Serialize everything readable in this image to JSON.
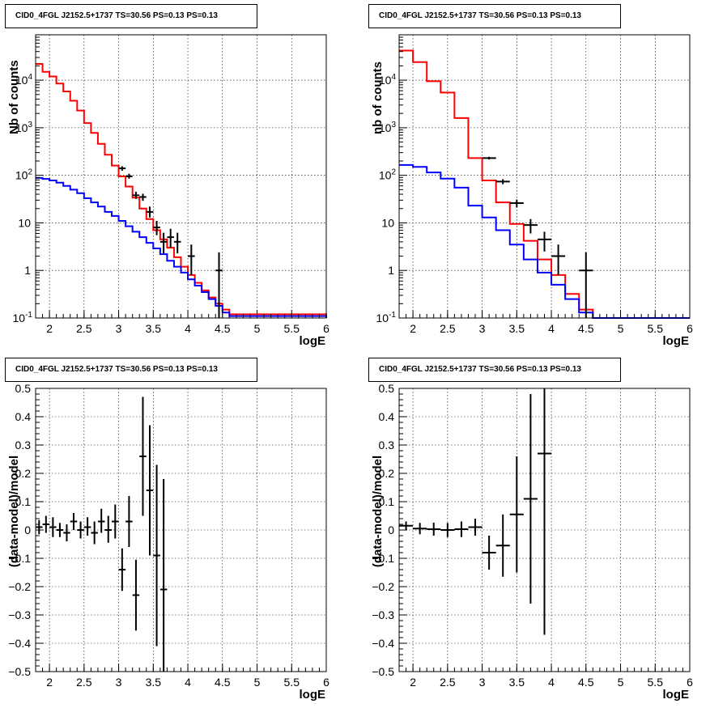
{
  "pads": [
    {
      "title": "CID0_4FGL J2152.5+1737 TS=30.56 PS=0.13 PS=0.13",
      "chart_data": {
        "type": "line",
        "xlabel": "logE",
        "ylabel": "Nb of counts",
        "yscale": "log",
        "xlim": [
          1.8,
          6.0
        ],
        "ylim": [
          0.1,
          90000
        ],
        "grid": true,
        "x_ticks": [
          "2",
          "2.5",
          "3",
          "3.5",
          "4",
          "4.5",
          "5",
          "5.5",
          "6"
        ],
        "y_ticks": [
          "10^-1",
          "1",
          "10",
          "10^2",
          "10^3",
          "10^4"
        ],
        "bin_edges": [
          1.8,
          1.9,
          2.0,
          2.1,
          2.2,
          2.3,
          2.4,
          2.5,
          2.6,
          2.7,
          2.8,
          2.9,
          3.0,
          3.1,
          3.2,
          3.3,
          3.4,
          3.5,
          3.6,
          3.7,
          3.8,
          3.9,
          4.0,
          4.1,
          4.2,
          4.3,
          4.4,
          4.5,
          4.6,
          6.0
        ],
        "series": [
          {
            "color": "#ff0000",
            "values": [
              22000,
              15000,
              12000,
              8500,
              5800,
              3700,
              2300,
              1250,
              780,
              460,
              270,
              160,
              95,
              58,
              34,
              20,
              12,
              7,
              4.5,
              3.0,
              1.9,
              1.2,
              0.8,
              0.55,
              0.38,
              0.27,
              0.2,
              0.15,
              0.12,
              0.1
            ]
          },
          {
            "color": "#0000ff",
            "values": [
              88,
              84,
              78,
              70,
              60,
              50,
              42,
              33,
              27,
              22,
              17,
              14,
              11,
              8.5,
              6.5,
              5,
              3.8,
              2.9,
              2.2,
              1.6,
              1.2,
              0.9,
              0.65,
              0.48,
              0.35,
              0.25,
              0.18,
              0.13,
              0.11,
              0.1
            ]
          }
        ],
        "points": [
          {
            "x": 3.05,
            "y": 140,
            "ylo": 125,
            "yhi": 155,
            "xerr": 0.05
          },
          {
            "x": 3.15,
            "y": 95,
            "ylo": 85,
            "yhi": 108,
            "xerr": 0.05
          },
          {
            "x": 3.25,
            "y": 38,
            "ylo": 32,
            "yhi": 45,
            "xerr": 0.05
          },
          {
            "x": 3.35,
            "y": 35,
            "ylo": 29,
            "yhi": 41,
            "xerr": 0.05
          },
          {
            "x": 3.45,
            "y": 17,
            "ylo": 13,
            "yhi": 22,
            "xerr": 0.05
          },
          {
            "x": 3.55,
            "y": 8,
            "ylo": 5.5,
            "yhi": 11,
            "xerr": 0.05
          },
          {
            "x": 3.65,
            "y": 4,
            "ylo": 2.3,
            "yhi": 6.2,
            "xerr": 0.05
          },
          {
            "x": 3.75,
            "y": 5,
            "ylo": 3.0,
            "yhi": 7.5,
            "xerr": 0.05
          },
          {
            "x": 3.85,
            "y": 4,
            "ylo": 2.3,
            "yhi": 6.2,
            "xerr": 0.05
          },
          {
            "x": 4.05,
            "y": 2,
            "ylo": 0.8,
            "yhi": 3.5,
            "xerr": 0.05
          },
          {
            "x": 4.45,
            "y": 1,
            "ylo": 0.1,
            "yhi": 2.4,
            "xerr": 0.05
          }
        ]
      }
    },
    {
      "title": "CID0_4FGL J2152.5+1737 TS=30.56 PS=0.13 PS=0.13",
      "chart_data": {
        "type": "line",
        "xlabel": "logE",
        "ylabel": "nb of counts",
        "yscale": "log",
        "xlim": [
          1.8,
          6.0
        ],
        "ylim": [
          0.1,
          90000
        ],
        "grid": true,
        "x_ticks": [
          "2",
          "2.5",
          "3",
          "3.5",
          "4",
          "4.5",
          "5",
          "5.5",
          "6"
        ],
        "y_ticks": [
          "10^-1",
          "1",
          "10",
          "10^2",
          "10^3",
          "10^4"
        ],
        "bin_edges": [
          1.8,
          2.0,
          2.2,
          2.4,
          2.6,
          2.8,
          3.0,
          3.2,
          3.4,
          3.6,
          3.8,
          4.0,
          4.2,
          4.4,
          4.6,
          4.8,
          6.0
        ],
        "series": [
          {
            "color": "#ff0000",
            "values": [
              42000,
              24000,
              9500,
              5500,
              1600,
              230,
              78,
              27,
              9.5,
              4.2,
              1.7,
              0.8,
              0.32,
              0.15,
              0.1,
              0.1
            ]
          },
          {
            "color": "#0000ff",
            "values": [
              165,
              150,
              115,
              85,
              55,
              23,
              13,
              7.0,
              3.5,
              1.7,
              0.9,
              0.5,
              0.25,
              0.13,
              0.1,
              0.1
            ]
          }
        ],
        "points": [
          {
            "x": 3.1,
            "y": 230,
            "ylo": 215,
            "yhi": 245,
            "xerr": 0.1
          },
          {
            "x": 3.3,
            "y": 74,
            "ylo": 65,
            "yhi": 83,
            "xerr": 0.1
          },
          {
            "x": 3.5,
            "y": 26,
            "ylo": 21,
            "yhi": 31,
            "xerr": 0.1
          },
          {
            "x": 3.7,
            "y": 9,
            "ylo": 6,
            "yhi": 12,
            "xerr": 0.1
          },
          {
            "x": 3.9,
            "y": 4.5,
            "ylo": 2.5,
            "yhi": 6.5,
            "xerr": 0.1
          },
          {
            "x": 4.1,
            "y": 2,
            "ylo": 0.8,
            "yhi": 3.5,
            "xerr": 0.1
          },
          {
            "x": 4.5,
            "y": 1,
            "ylo": 0.1,
            "yhi": 2.4,
            "xerr": 0.1
          }
        ]
      }
    },
    {
      "title": "CID0_4FGL J2152.5+1737 TS=30.56 PS=0.13 PS=0.13",
      "chart_data": {
        "type": "scatter",
        "xlabel": "logE",
        "ylabel": "(data-model)/model",
        "xlim": [
          1.8,
          6.0
        ],
        "ylim": [
          -0.5,
          0.5
        ],
        "grid": true,
        "x_ticks": [
          "2",
          "2.5",
          "3",
          "3.5",
          "4",
          "4.5",
          "5",
          "5.5",
          "6"
        ],
        "y_ticks": [
          "-0.5",
          "-0.4",
          "-0.3",
          "-0.2",
          "-0.1",
          "0",
          "0.1",
          "0.2",
          "0.3",
          "0.4",
          "0.5"
        ],
        "points": [
          {
            "x": 1.85,
            "y": 0.01,
            "ylo": -0.015,
            "yhi": 0.035,
            "xerr": 0.05
          },
          {
            "x": 1.95,
            "y": 0.02,
            "ylo": -0.01,
            "yhi": 0.05,
            "xerr": 0.05
          },
          {
            "x": 2.05,
            "y": 0.01,
            "ylo": -0.025,
            "yhi": 0.045,
            "xerr": 0.05
          },
          {
            "x": 2.15,
            "y": 0.0,
            "ylo": -0.025,
            "yhi": 0.025,
            "xerr": 0.05
          },
          {
            "x": 2.25,
            "y": -0.01,
            "ylo": -0.04,
            "yhi": 0.02,
            "xerr": 0.05
          },
          {
            "x": 2.35,
            "y": 0.03,
            "ylo": 0.0,
            "yhi": 0.06,
            "xerr": 0.05
          },
          {
            "x": 2.45,
            "y": 0.0,
            "ylo": -0.03,
            "yhi": 0.03,
            "xerr": 0.05
          },
          {
            "x": 2.55,
            "y": 0.01,
            "ylo": -0.02,
            "yhi": 0.045,
            "xerr": 0.05
          },
          {
            "x": 2.65,
            "y": -0.01,
            "ylo": -0.05,
            "yhi": 0.03,
            "xerr": 0.05
          },
          {
            "x": 2.75,
            "y": 0.03,
            "ylo": -0.01,
            "yhi": 0.075,
            "xerr": 0.05
          },
          {
            "x": 2.85,
            "y": 0.0,
            "ylo": -0.045,
            "yhi": 0.05,
            "xerr": 0.05
          },
          {
            "x": 2.95,
            "y": 0.03,
            "ylo": -0.03,
            "yhi": 0.09,
            "xerr": 0.05
          },
          {
            "x": 3.05,
            "y": -0.14,
            "ylo": -0.215,
            "yhi": -0.065,
            "xerr": 0.05
          },
          {
            "x": 3.15,
            "y": 0.03,
            "ylo": -0.06,
            "yhi": 0.12,
            "xerr": 0.05
          },
          {
            "x": 3.25,
            "y": -0.23,
            "ylo": -0.355,
            "yhi": -0.105,
            "xerr": 0.05
          },
          {
            "x": 3.35,
            "y": 0.26,
            "ylo": 0.05,
            "yhi": 0.47,
            "xerr": 0.05
          },
          {
            "x": 3.45,
            "y": 0.14,
            "ylo": -0.09,
            "yhi": 0.37,
            "xerr": 0.05
          },
          {
            "x": 3.55,
            "y": -0.09,
            "ylo": -0.41,
            "yhi": 0.23,
            "xerr": 0.05
          },
          {
            "x": 3.65,
            "y": -0.21,
            "ylo": -0.6,
            "yhi": 0.18,
            "xerr": 0.05
          }
        ]
      }
    },
    {
      "title": "CID0_4FGL J2152.5+1737 TS=30.56 PS=0.13 PS=0.13",
      "chart_data": {
        "type": "scatter",
        "xlabel": "logE",
        "ylabel": "(data-model)/model",
        "xlim": [
          1.8,
          6.0
        ],
        "ylim": [
          -0.5,
          0.5
        ],
        "grid": true,
        "x_ticks": [
          "2",
          "2.5",
          "3",
          "3.5",
          "4",
          "4.5",
          "5",
          "5.5",
          "6"
        ],
        "y_ticks": [
          "-0.5",
          "-0.4",
          "-0.3",
          "-0.2",
          "-0.1",
          "0",
          "0.1",
          "0.2",
          "0.3",
          "0.4",
          "0.5"
        ],
        "points": [
          {
            "x": 1.9,
            "y": 0.015,
            "ylo": 0.0,
            "yhi": 0.03,
            "xerr": 0.1
          },
          {
            "x": 2.1,
            "y": 0.005,
            "ylo": -0.015,
            "yhi": 0.025,
            "xerr": 0.1
          },
          {
            "x": 2.3,
            "y": 0.003,
            "ylo": -0.02,
            "yhi": 0.026,
            "xerr": 0.1
          },
          {
            "x": 2.5,
            "y": 0.0,
            "ylo": -0.025,
            "yhi": 0.025,
            "xerr": 0.1
          },
          {
            "x": 2.7,
            "y": 0.003,
            "ylo": -0.025,
            "yhi": 0.03,
            "xerr": 0.1
          },
          {
            "x": 2.9,
            "y": 0.01,
            "ylo": -0.02,
            "yhi": 0.04,
            "xerr": 0.1
          },
          {
            "x": 3.1,
            "y": -0.08,
            "ylo": -0.14,
            "yhi": -0.02,
            "xerr": 0.1
          },
          {
            "x": 3.3,
            "y": -0.055,
            "ylo": -0.165,
            "yhi": 0.055,
            "xerr": 0.1
          },
          {
            "x": 3.5,
            "y": 0.055,
            "ylo": -0.15,
            "yhi": 0.26,
            "xerr": 0.1
          },
          {
            "x": 3.7,
            "y": 0.11,
            "ylo": -0.26,
            "yhi": 0.48,
            "xerr": 0.1
          },
          {
            "x": 3.9,
            "y": 0.27,
            "ylo": -0.37,
            "yhi": 0.9,
            "xerr": 0.1
          }
        ]
      }
    }
  ]
}
